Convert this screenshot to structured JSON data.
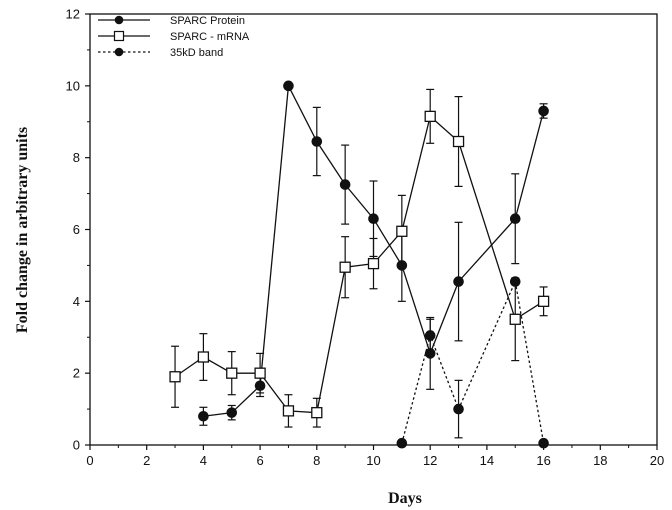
{
  "chart_data": {
    "type": "line",
    "title": "",
    "xlabel": "Days",
    "ylabel": "Fold change in arbitrary units",
    "xlim": [
      0,
      20
    ],
    "ylim": [
      0,
      12
    ],
    "x_ticks": [
      0,
      2,
      4,
      6,
      8,
      10,
      12,
      14,
      16,
      18,
      20
    ],
    "y_ticks": [
      0,
      2,
      4,
      6,
      8,
      10,
      12
    ],
    "grid": false,
    "legend_position": "top-left",
    "series": [
      {
        "name": "SPARC Protein",
        "marker": "filled-circle",
        "line": "solid",
        "x": [
          4,
          5,
          6,
          7,
          8,
          9,
          10,
          11,
          12,
          13,
          15,
          16
        ],
        "y": [
          0.8,
          0.9,
          1.65,
          10.0,
          8.45,
          7.25,
          6.3,
          5.0,
          2.55,
          4.55,
          6.3,
          9.3
        ],
        "err": [
          0.25,
          0.2,
          0.3,
          0,
          0.95,
          1.1,
          1.05,
          1.0,
          1.0,
          1.65,
          1.25,
          0.2
        ]
      },
      {
        "name": "SPARC - mRNA",
        "marker": "open-square",
        "line": "solid",
        "x": [
          3,
          4,
          5,
          6,
          7,
          8,
          9,
          10,
          11,
          12,
          13,
          15,
          16
        ],
        "y": [
          1.9,
          2.45,
          2.0,
          2.0,
          0.95,
          0.9,
          4.95,
          5.05,
          5.95,
          9.15,
          8.45,
          3.5,
          4.0
        ],
        "err": [
          0.85,
          0.65,
          0.6,
          0.55,
          0.45,
          0.4,
          0.85,
          0.7,
          1.0,
          0.75,
          1.25,
          1.15,
          0.4
        ]
      },
      {
        "name": "35kD band",
        "marker": "filled-circle",
        "line": "dotted",
        "x": [
          11,
          12,
          13,
          15,
          16
        ],
        "y": [
          0.05,
          3.05,
          1.0,
          4.55,
          0.05
        ],
        "err": [
          0,
          0.45,
          0.8,
          0,
          0
        ]
      }
    ]
  }
}
